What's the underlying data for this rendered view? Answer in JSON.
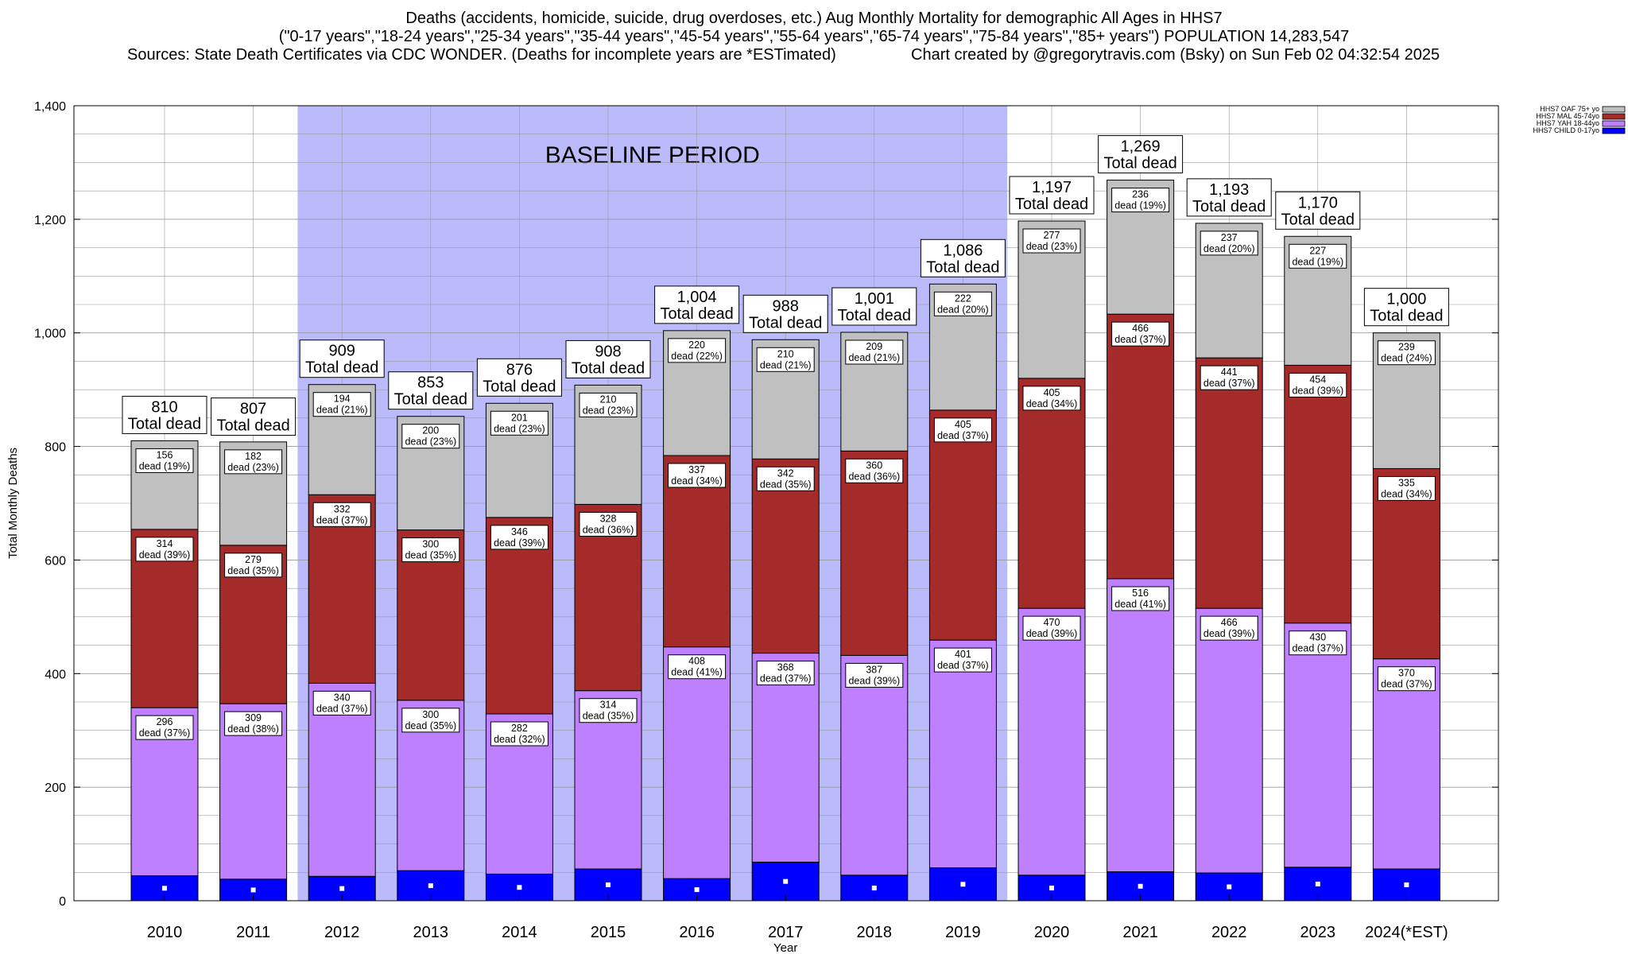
{
  "header": {
    "line1": "Deaths (accidents, homicide, suicide, drug overdoses, etc.) Aug Monthly Mortality for demographic All Ages in HHS7",
    "line2": "(\"0-17 years\",\"18-24 years\",\"25-34 years\",\"35-44 years\",\"45-54 years\",\"55-64 years\",\"65-74 years\",\"75-84 years\",\"85+ years\") POPULATION 14,283,547",
    "line3_left": "Sources: State Death Certificates via CDC WONDER. (Deaths for incomplete years are *ESTimated)",
    "line3_right": "Chart created by @gregorytravis.com (Bsky) on Sun Feb 02 04:32:54 2025"
  },
  "chart_data": {
    "type": "bar",
    "stacked": true,
    "xlabel": "Year",
    "ylabel": "Total Monthly Deaths",
    "ylim": [
      0,
      1400
    ],
    "y_ticks": [
      "0",
      "200",
      "400",
      "600",
      "800",
      "1,000",
      "1,200",
      "1,400"
    ],
    "y_tick_values": [
      0,
      200,
      400,
      600,
      800,
      1000,
      1200,
      1400
    ],
    "grid": true,
    "categories": [
      "2010",
      "2011",
      "2012",
      "2013",
      "2014",
      "2015",
      "2016",
      "2017",
      "2018",
      "2019",
      "2020",
      "2021",
      "2022",
      "2023",
      "2024(*EST)"
    ],
    "baseline_period": {
      "label": "BASELINE PERIOD",
      "from": "2012",
      "to": "2019",
      "color": "#bbbbfb"
    },
    "legend_position": "top-right",
    "series": [
      {
        "name": "HHS7 CHILD 0-17yo",
        "color": "#0000ff",
        "values": [
          44,
          38,
          43,
          53,
          47,
          56,
          39,
          68,
          45,
          58,
          45,
          51,
          49,
          59,
          56
        ],
        "labeled": false
      },
      {
        "name": "HHS7 YAH 18-44yo",
        "color": "#bf80ff",
        "values": [
          296,
          309,
          340,
          300,
          282,
          314,
          408,
          368,
          387,
          401,
          470,
          516,
          466,
          430,
          370
        ],
        "pct": [
          "37%",
          "38%",
          "37%",
          "35%",
          "32%",
          "35%",
          "41%",
          "37%",
          "39%",
          "37%",
          "39%",
          "41%",
          "39%",
          "37%",
          "37%"
        ],
        "labeled": true
      },
      {
        "name": "HHS7 MAL 45-74yo",
        "color": "#a52a2a",
        "values": [
          314,
          279,
          332,
          300,
          346,
          328,
          337,
          342,
          360,
          405,
          405,
          466,
          441,
          454,
          335
        ],
        "pct": [
          "39%",
          "35%",
          "37%",
          "35%",
          "39%",
          "36%",
          "34%",
          "35%",
          "36%",
          "37%",
          "34%",
          "37%",
          "37%",
          "39%",
          "34%"
        ],
        "labeled": true
      },
      {
        "name": "HHS7 OAF 75+ yo",
        "color": "#c0c0c0",
        "values": [
          156,
          182,
          194,
          200,
          201,
          210,
          220,
          210,
          209,
          222,
          277,
          236,
          237,
          227,
          239
        ],
        "pct": [
          "19%",
          "23%",
          "21%",
          "23%",
          "23%",
          "23%",
          "22%",
          "21%",
          "21%",
          "20%",
          "23%",
          "19%",
          "20%",
          "19%",
          "24%"
        ],
        "labeled": true
      }
    ],
    "totals": [
      810,
      807,
      909,
      853,
      876,
      908,
      1004,
      988,
      1001,
      1086,
      1197,
      1269,
      1193,
      1170,
      1000
    ],
    "totals_label": [
      "810",
      "807",
      "909",
      "853",
      "876",
      "908",
      "1,004",
      "988",
      "1,001",
      "1,086",
      "1,197",
      "1,269",
      "1,193",
      "1,170",
      "1,000"
    ],
    "total_suffix": "Total dead",
    "segment_suffix": "dead",
    "legend_order": [
      "HHS7 OAF 75+ yo",
      "HHS7 MAL 45-74yo",
      "HHS7 YAH 18-44yo",
      "HHS7 CHILD 0-17yo"
    ]
  }
}
